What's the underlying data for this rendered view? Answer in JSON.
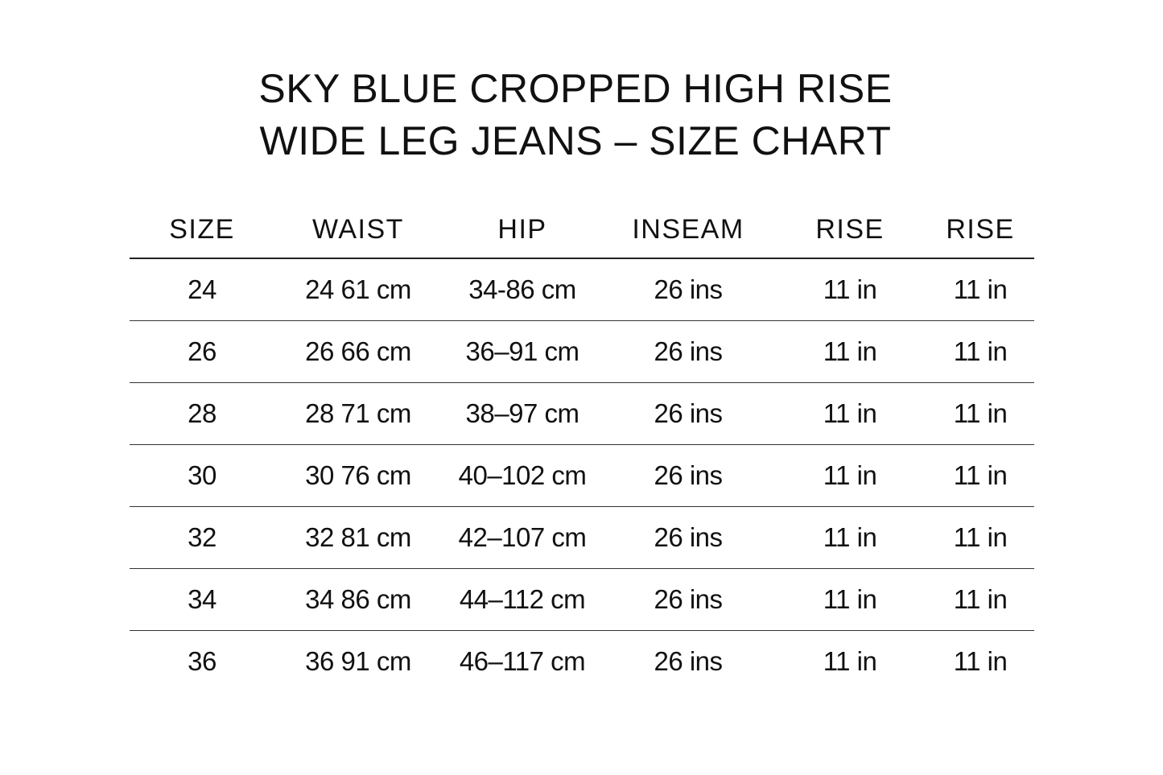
{
  "title": {
    "line1": "SKY BLUE CROPPED HIGH RISE",
    "line2": "WIDE LEG JEANS – SIZE CHART"
  },
  "table": {
    "headers": [
      "SIZE",
      "WAIST",
      "HIP",
      "INSEAM",
      "RISE",
      "RISE"
    ],
    "rows": [
      [
        "24",
        "24 61 cm",
        "34-86 cm",
        "26 ins",
        "11 in",
        "11 in"
      ],
      [
        "26",
        "26 66 cm",
        "36–91 cm",
        "26 ins",
        "11 in",
        "11 in"
      ],
      [
        "28",
        "28 71 cm",
        "38–97 cm",
        "26 ins",
        "11 in",
        "11 in"
      ],
      [
        "30",
        "30 76 cm",
        "40–102 cm",
        "26 ins",
        "11 in",
        "11 in"
      ],
      [
        "32",
        "32 81 cm",
        "42–107 cm",
        "26 ins",
        "11 in",
        "11 in"
      ],
      [
        "34",
        "34 86 cm",
        "44–112 cm",
        "26 ins",
        "11 in",
        "11 in"
      ],
      [
        "36",
        "36 91 cm",
        "46–117 cm",
        "26 ins",
        "11 in",
        "11 in"
      ]
    ]
  }
}
